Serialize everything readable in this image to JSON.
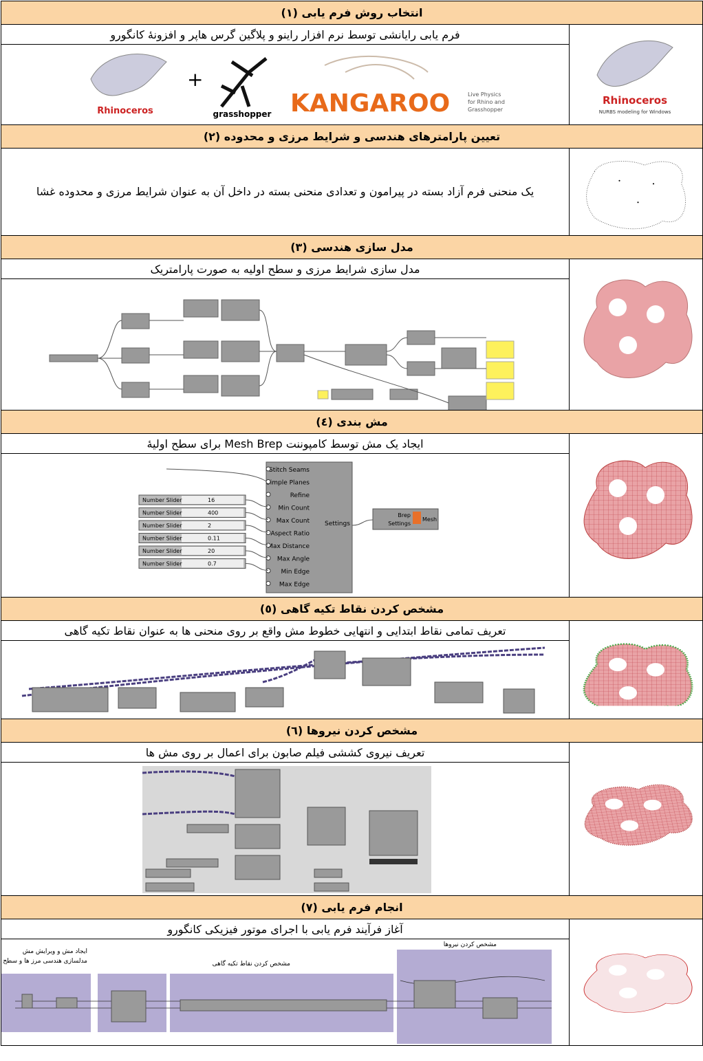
{
  "sections": [
    {
      "title": "(۱) انتخاب روش فرم یابی",
      "description": "فرم یابی رایانشی توسط نرم افزار راینو و پلاگین گرس هاپر و افزونهٔ کانگورو"
    },
    {
      "title": "(۲) تعیین پارامترهای هندسی و شرایط مرزی و محدوده",
      "description": "یک منحنی فرم آزاد بسته در پیرامون و تعدادی منحنی بسته در داخل آن به عنوان شرایط مرزی و محدوده غشا"
    },
    {
      "title": "(۳) مدل سازی هندسی",
      "description": "مدل سازی شرایط مرزی و سطح اولیه به صورت پارامتریک"
    },
    {
      "title": "(٤) مش بندی",
      "description": "ایجاد یک مش توسط کامپوننت Mesh Brep برای سطح اولیهٔ"
    },
    {
      "title": "(٥) مشخص کردن نقاط تکیه گاهی",
      "description": "تعریف تمامی نقاط ابتدایی و انتهایی خطوط مش واقع بر روی منحنی ها به عنوان نقاط تکیه گاهی"
    },
    {
      "title": "(٦) مشخص کردن نیروها",
      "description": "تعریف نیروی کششی فیلم صابون برای اعمال بر روی مش ها"
    },
    {
      "title": "(۷) انجام فرم یابی",
      "description": "آغاز فرآیند فرم یابی با اجرای موتور فیزیکی کانگورو"
    }
  ],
  "logos": {
    "rhino": "Rhinoceros",
    "rhino_sub": "NURBS modeling for Windows",
    "grasshopper": "grasshopper",
    "kangaroo": "KANGAROO",
    "kangaroo_sub": [
      "Live Physics",
      "for Rhino and",
      "Grasshopper"
    ]
  },
  "mesh_settings": {
    "inputs": [
      "Stitch Seams",
      "Simple Planes",
      "Refine",
      "Min Count",
      "Max Count",
      "Aspect Ratio",
      "Max Distance",
      "Max Angle",
      "Min Edge",
      "Max Edge"
    ],
    "slider_label": "Number Slider",
    "slider_values": [
      "16",
      "400",
      "2",
      "0.11",
      "20",
      "0.7"
    ],
    "component": "Settings",
    "outputs": [
      "Brep",
      "Settings"
    ],
    "mesh": "Mesh"
  },
  "stage_labels": [
    "ایجاد مش و ویرایش مش",
    "مدلسازی هندسی مرز ها و سطح",
    "مشخص کردن نقاط تکیه گاهی",
    "مشخص کردن نیروها"
  ]
}
